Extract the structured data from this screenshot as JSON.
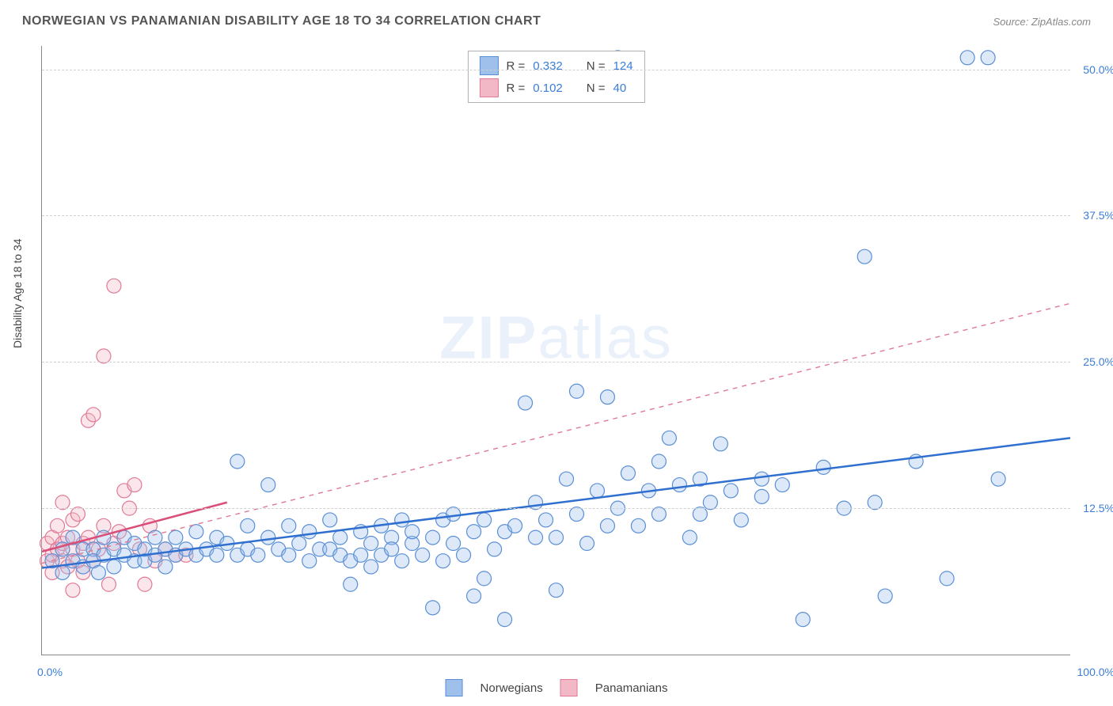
{
  "title": "NORWEGIAN VS PANAMANIAN DISABILITY AGE 18 TO 34 CORRELATION CHART",
  "source": "Source: ZipAtlas.com",
  "ylabel": "Disability Age 18 to 34",
  "watermark_a": "ZIP",
  "watermark_b": "atlas",
  "chart": {
    "type": "scatter",
    "background_color": "#ffffff",
    "grid_color": "#d0d0d0",
    "axis_color": "#888888",
    "xlim": [
      0,
      100
    ],
    "ylim": [
      0,
      52
    ],
    "yticks": [
      12.5,
      25.0,
      37.5,
      50.0
    ],
    "ytick_labels": [
      "12.5%",
      "25.0%",
      "37.5%",
      "50.0%"
    ],
    "xtick_left": "0.0%",
    "xtick_right": "100.0%",
    "marker_radius": 9,
    "marker_stroke_width": 1.2,
    "marker_fill_opacity": 0.35,
    "line_width_solid": 2.5,
    "line_width_dashed": 1.4,
    "series": {
      "norwegians": {
        "label": "Norwegians",
        "color_fill": "#9fc0ea",
        "color_stroke": "#5a8fd6",
        "R": "0.332",
        "N": "124",
        "trend_solid": {
          "x1": 0,
          "y1": 7.4,
          "x2": 100,
          "y2": 18.5
        },
        "trend_dashed": {
          "x1": 0,
          "y1": 7.8,
          "x2": 100,
          "y2": 30.0
        },
        "points": [
          [
            1,
            8
          ],
          [
            2,
            9
          ],
          [
            2,
            7
          ],
          [
            3,
            10
          ],
          [
            3,
            8
          ],
          [
            4,
            9
          ],
          [
            4,
            7.5
          ],
          [
            5,
            9
          ],
          [
            5,
            8
          ],
          [
            5.5,
            7
          ],
          [
            6,
            8.5
          ],
          [
            6,
            10
          ],
          [
            7,
            9
          ],
          [
            7,
            7.5
          ],
          [
            8,
            8.5
          ],
          [
            8,
            10
          ],
          [
            9,
            8
          ],
          [
            9,
            9.5
          ],
          [
            10,
            9
          ],
          [
            10,
            8
          ],
          [
            11,
            10
          ],
          [
            11,
            8.5
          ],
          [
            12,
            9
          ],
          [
            12,
            7.5
          ],
          [
            13,
            8.5
          ],
          [
            13,
            10
          ],
          [
            14,
            9
          ],
          [
            15,
            8.5
          ],
          [
            15,
            10.5
          ],
          [
            16,
            9
          ],
          [
            17,
            8.5
          ],
          [
            17,
            10
          ],
          [
            18,
            9.5
          ],
          [
            19,
            16.5
          ],
          [
            19,
            8.5
          ],
          [
            20,
            9
          ],
          [
            20,
            11
          ],
          [
            21,
            8.5
          ],
          [
            22,
            10
          ],
          [
            22,
            14.5
          ],
          [
            23,
            9
          ],
          [
            24,
            11
          ],
          [
            24,
            8.5
          ],
          [
            25,
            9.5
          ],
          [
            26,
            8
          ],
          [
            26,
            10.5
          ],
          [
            27,
            9
          ],
          [
            28,
            9
          ],
          [
            28,
            11.5
          ],
          [
            29,
            8.5
          ],
          [
            29,
            10
          ],
          [
            30,
            6
          ],
          [
            30,
            8
          ],
          [
            31,
            10.5
          ],
          [
            31,
            8.5
          ],
          [
            32,
            9.5
          ],
          [
            32,
            7.5
          ],
          [
            33,
            11
          ],
          [
            33,
            8.5
          ],
          [
            34,
            10
          ],
          [
            34,
            9
          ],
          [
            35,
            8
          ],
          [
            35,
            11.5
          ],
          [
            36,
            9.5
          ],
          [
            36,
            10.5
          ],
          [
            37,
            8.5
          ],
          [
            38,
            10
          ],
          [
            38,
            4
          ],
          [
            39,
            11.5
          ],
          [
            39,
            8
          ],
          [
            40,
            9.5
          ],
          [
            40,
            12
          ],
          [
            41,
            8.5
          ],
          [
            42,
            5
          ],
          [
            42,
            10.5
          ],
          [
            43,
            11.5
          ],
          [
            43,
            6.5
          ],
          [
            44,
            9
          ],
          [
            45,
            10.5
          ],
          [
            45,
            3
          ],
          [
            46,
            11
          ],
          [
            47,
            21.5
          ],
          [
            48,
            13
          ],
          [
            48,
            10
          ],
          [
            49,
            11.5
          ],
          [
            50,
            5.5
          ],
          [
            50,
            10
          ],
          [
            51,
            15
          ],
          [
            52,
            22.5
          ],
          [
            52,
            12
          ],
          [
            53,
            9.5
          ],
          [
            54,
            14
          ],
          [
            55,
            22
          ],
          [
            55,
            11
          ],
          [
            56,
            12.5
          ],
          [
            57,
            15.5
          ],
          [
            58,
            11
          ],
          [
            59,
            14
          ],
          [
            60,
            12
          ],
          [
            60,
            16.5
          ],
          [
            61,
            18.5
          ],
          [
            62,
            14.5
          ],
          [
            63,
            10
          ],
          [
            64,
            12
          ],
          [
            64,
            15
          ],
          [
            65,
            13
          ],
          [
            66,
            18
          ],
          [
            67,
            14
          ],
          [
            68,
            11.5
          ],
          [
            70,
            13.5
          ],
          [
            70,
            15
          ],
          [
            72,
            14.5
          ],
          [
            74,
            3
          ],
          [
            76,
            16
          ],
          [
            78,
            12.5
          ],
          [
            80,
            34
          ],
          [
            81,
            13
          ],
          [
            82,
            5
          ],
          [
            85,
            16.5
          ],
          [
            88,
            6.5
          ],
          [
            90,
            51
          ],
          [
            92,
            51
          ],
          [
            93,
            15
          ],
          [
            56,
            51
          ]
        ]
      },
      "panamanians": {
        "label": "Panamanians",
        "color_fill": "#f2b8c6",
        "color_stroke": "#e07a95",
        "R": "0.102",
        "N": "40",
        "trend_solid": {
          "x1": 0,
          "y1": 8.8,
          "x2": 18,
          "y2": 13.0
        },
        "points": [
          [
            0.5,
            8
          ],
          [
            0.5,
            9.5
          ],
          [
            1,
            8.5
          ],
          [
            1,
            10
          ],
          [
            1,
            7
          ],
          [
            1.5,
            9
          ],
          [
            1.5,
            11
          ],
          [
            2,
            8
          ],
          [
            2,
            9.5
          ],
          [
            2,
            13
          ],
          [
            2.5,
            7.5
          ],
          [
            2.5,
            10
          ],
          [
            3,
            11.5
          ],
          [
            3,
            9
          ],
          [
            3,
            5.5
          ],
          [
            3.5,
            8
          ],
          [
            3.5,
            12
          ],
          [
            4,
            9.5
          ],
          [
            4,
            7
          ],
          [
            4.5,
            20
          ],
          [
            4.5,
            10
          ],
          [
            5,
            20.5
          ],
          [
            5,
            8
          ],
          [
            5.5,
            9
          ],
          [
            6,
            11
          ],
          [
            6,
            25.5
          ],
          [
            6.5,
            6
          ],
          [
            7,
            31.5
          ],
          [
            7,
            9.5
          ],
          [
            7.5,
            10.5
          ],
          [
            8,
            14
          ],
          [
            8.5,
            12.5
          ],
          [
            9,
            14.5
          ],
          [
            9.5,
            9
          ],
          [
            10,
            6
          ],
          [
            10.5,
            11
          ],
          [
            11,
            8
          ],
          [
            12,
            9
          ],
          [
            13,
            8.5
          ],
          [
            14,
            8.5
          ]
        ]
      }
    }
  },
  "legend_top": {
    "r_label": "R =",
    "n_label": "N ="
  }
}
